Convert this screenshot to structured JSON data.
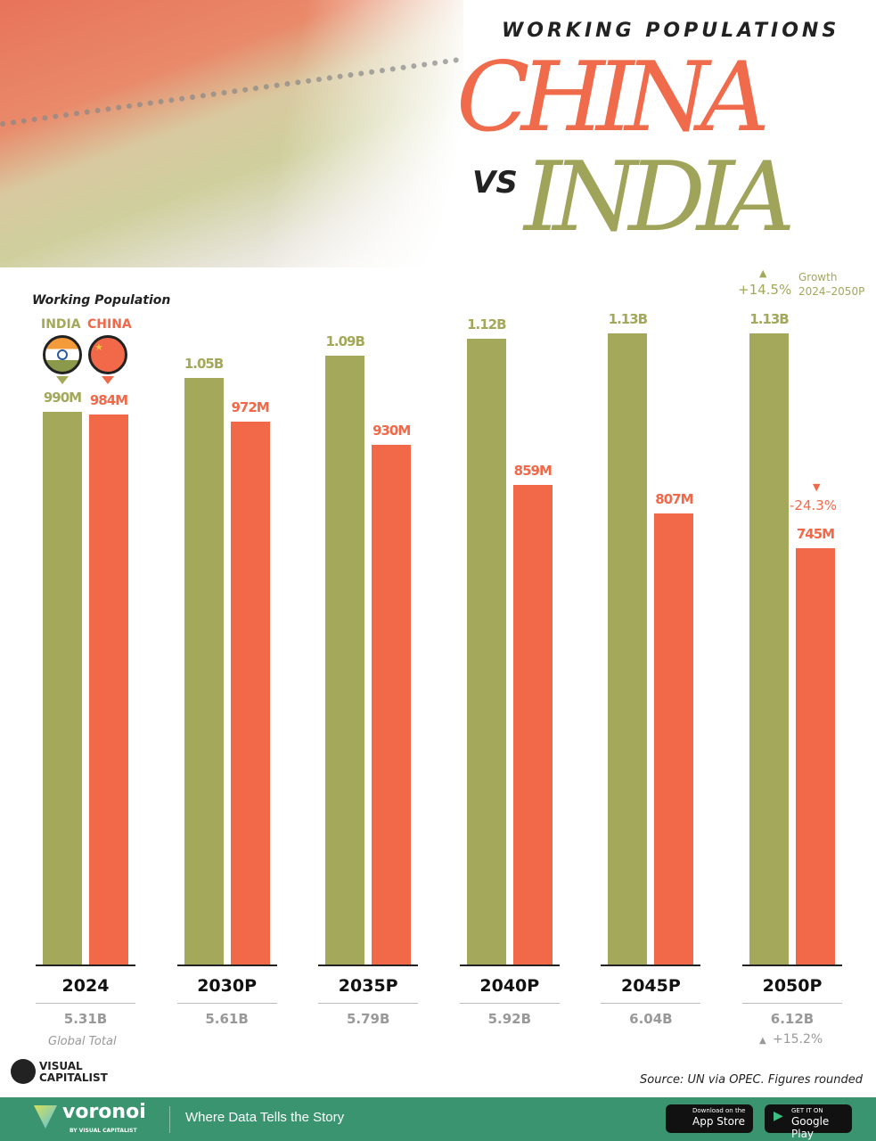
{
  "header": {
    "supertitle": "WORKING POPULATIONS",
    "title_china": "CHINA",
    "vs": "VS",
    "title_india": "INDIA"
  },
  "colors": {
    "india": "#a3a85a",
    "china": "#f2694a"
  },
  "legend": {
    "heading": "Working Population",
    "india": "INDIA",
    "china": "CHINA"
  },
  "chart_data": {
    "type": "bar",
    "categories": [
      "2024",
      "2030P",
      "2035P",
      "2040P",
      "2045P",
      "2050P"
    ],
    "series": [
      {
        "name": "INDIA",
        "values": [
          990,
          1050,
          1090,
          1120,
          1130,
          1130
        ],
        "labels": [
          "990M",
          "1.05B",
          "1.09B",
          "1.12B",
          "1.13B",
          "1.13B"
        ]
      },
      {
        "name": "CHINA",
        "values": [
          984,
          972,
          930,
          859,
          807,
          745
        ],
        "labels": [
          "984M",
          "972M",
          "930M",
          "859M",
          "807M",
          "745M"
        ]
      }
    ],
    "unit": "millions",
    "ylim": [
      0,
      1130
    ],
    "global_totals": [
      "5.31B",
      "5.61B",
      "5.79B",
      "5.92B",
      "6.04B",
      "6.12B"
    ],
    "global_total_label": "Global Total",
    "annotations": {
      "india_growth": "+14.5%",
      "growth_label_1": "Growth",
      "growth_label_2": "2024–2050P",
      "china_growth": "-24.3%",
      "global_growth": "+15.2%"
    }
  },
  "footer": {
    "brand": "VISUAL CAPITALIST",
    "source": "Source: UN via OPEC. Figures rounded",
    "voronoi": "voronoi",
    "voronoi_sub": "BY VISUAL CAPITALIST",
    "tagline": "Where Data Tells the Story",
    "appstore_small": "Download on the",
    "appstore": "App Store",
    "gplay_small": "GET IT ON",
    "gplay": "Google Play"
  }
}
